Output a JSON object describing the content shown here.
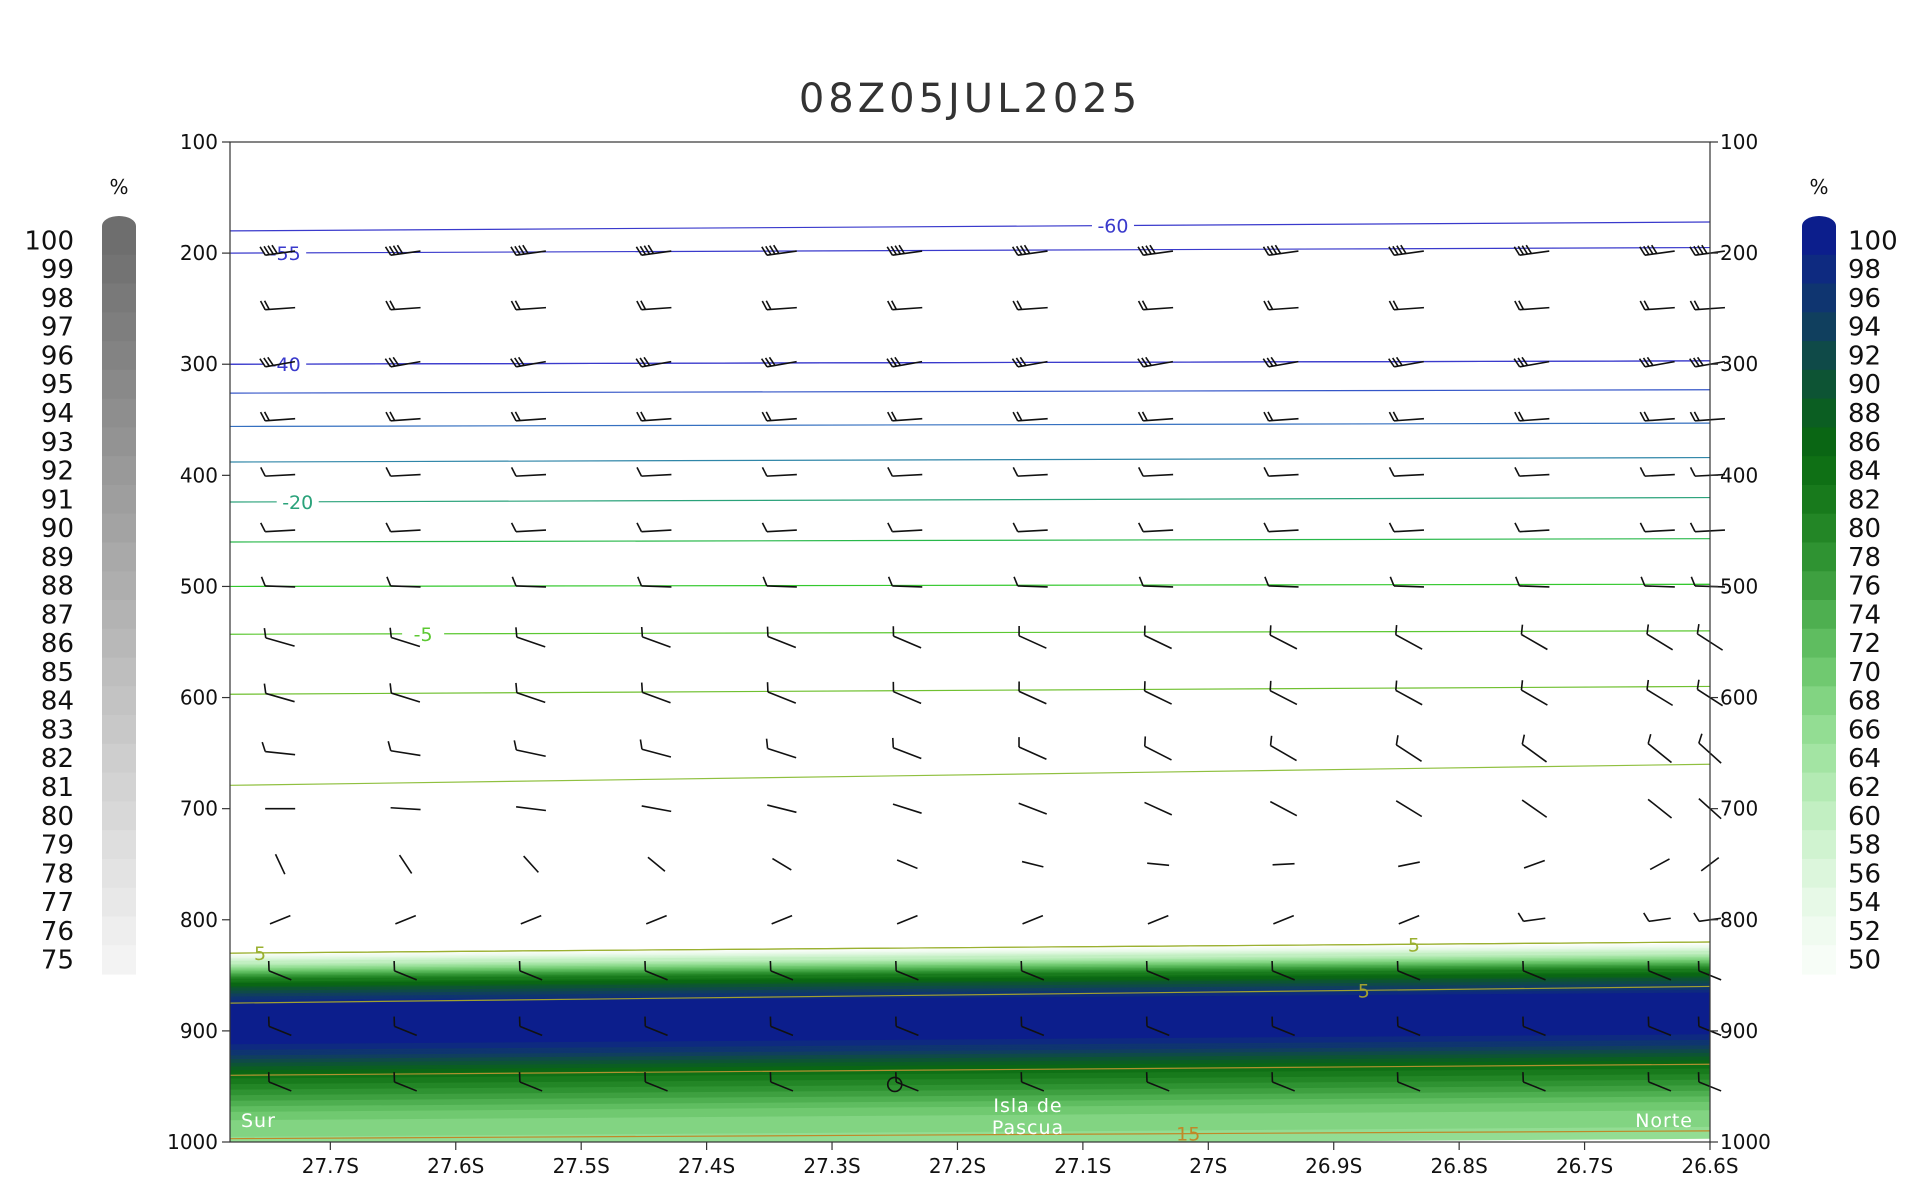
{
  "chart_data": {
    "type": "cross-section",
    "title": "08Z05JUL2025",
    "x_axis": {
      "labels": [
        "27.7S",
        "27.6S",
        "27.5S",
        "27.4S",
        "27.3S",
        "27.2S",
        "27.1S",
        "27S",
        "26.9S",
        "26.8S",
        "26.7S",
        "26.6S"
      ],
      "values": [
        -27.7,
        -27.6,
        -27.5,
        -27.4,
        -27.3,
        -27.2,
        -27.1,
        -27.0,
        -26.9,
        -26.8,
        -26.7,
        -26.6
      ],
      "range": [
        -27.78,
        -26.6
      ]
    },
    "y_axis": {
      "ticks": [
        100,
        200,
        300,
        400,
        500,
        600,
        700,
        800,
        900,
        1000
      ],
      "range": [
        100,
        1000
      ],
      "inverted": true
    },
    "annotations": {
      "left": "Sur",
      "center_line1": "Isla de",
      "center_line2": "Pascua",
      "right": "Norte"
    },
    "left_colorbar": {
      "unit": "%",
      "labels": [
        "100",
        "99",
        "98",
        "97",
        "96",
        "95",
        "94",
        "93",
        "92",
        "91",
        "90",
        "89",
        "88",
        "87",
        "86",
        "85",
        "84",
        "83",
        "82",
        "81",
        "80",
        "79",
        "78",
        "77",
        "76",
        "75"
      ],
      "color_top": "#6e6e6e",
      "color_bottom": "#f3f3f3"
    },
    "right_colorbar": {
      "unit": "%",
      "labels": [
        "100",
        "98",
        "96",
        "94",
        "92",
        "90",
        "88",
        "86",
        "84",
        "82",
        "80",
        "78",
        "76",
        "74",
        "72",
        "70",
        "68",
        "66",
        "64",
        "62",
        "60",
        "58",
        "56",
        "54",
        "52",
        "50"
      ],
      "colors": [
        "#0c1e8c",
        "#0e2a80",
        "#0f3570",
        "#103f5e",
        "#0f4a48",
        "#0d5434",
        "#0b5e22",
        "#0a6614",
        "#0f7015",
        "#187a1c",
        "#238626",
        "#2f9332",
        "#3ea040",
        "#4eaf50",
        "#5fbd60",
        "#70c970",
        "#82d482",
        "#93dd93",
        "#a3e4a3",
        "#b3eab3",
        "#c2efc2",
        "#d0f3d0",
        "#dcf6dc",
        "#e7f9e7",
        "#f0fbf0",
        "#f7fdf7"
      ]
    },
    "humidity_layer": {
      "description_values": {
        "pressure_top": 825,
        "pressure_core_top": 870,
        "pressure_core_bottom": 905,
        "pressure_bottom": 1000,
        "max_percent": 100
      }
    },
    "temperature_contours": [
      {
        "label": "-60",
        "p_left": 180,
        "p_right": 172,
        "color": "#3a3acc",
        "label_x": -27.08
      },
      {
        "label": "-55",
        "p_left": 200,
        "p_right": 195,
        "color": "#3a3acc",
        "label_x": -27.74
      },
      {
        "label": "",
        "p_left": 300,
        "p_right": 297,
        "color": "#3a3acc"
      },
      {
        "label": "-40",
        "p_left": 300,
        "p_right": 297,
        "color": "#3a3acc",
        "label_x": -27.74
      },
      {
        "label": "",
        "p_left": 326,
        "p_right": 323,
        "color": "#3556c8"
      },
      {
        "label": "",
        "p_left": 356,
        "p_right": 353,
        "color": "#3570c0"
      },
      {
        "label": "",
        "p_left": 388,
        "p_right": 384,
        "color": "#2f86a8"
      },
      {
        "label": "-20",
        "p_left": 424,
        "p_right": 420,
        "color": "#2aa27a",
        "label_x": -27.73
      },
      {
        "label": "",
        "p_left": 460,
        "p_right": 457,
        "color": "#28b84a"
      },
      {
        "label": "",
        "p_left": 500,
        "p_right": 498,
        "color": "#34c82e"
      },
      {
        "label": "-5",
        "p_left": 543,
        "p_right": 540,
        "color": "#5cc832",
        "label_x": -27.63
      },
      {
        "label": "",
        "p_left": 597,
        "p_right": 590,
        "color": "#70c030"
      },
      {
        "label": "",
        "p_left": 679,
        "p_right": 660,
        "color": "#90c040"
      },
      {
        "label": "5",
        "p_left": 830,
        "p_right": 820,
        "color": "#9ab030",
        "label_x": -27.76
      },
      {
        "label": "5",
        "p_left": 830,
        "p_right": 820,
        "color": "#9ab030",
        "label_x": -26.84
      },
      {
        "label": "5",
        "p_left": 875,
        "p_right": 860,
        "color": "#a0a030",
        "label_x": -26.88
      },
      {
        "label": "",
        "p_left": 940,
        "p_right": 930,
        "color": "#b09030"
      },
      {
        "label": "15",
        "p_left": 997,
        "p_right": 990,
        "color": "#c08828",
        "label_x": -27.02
      }
    ],
    "wind_barb_levels": [
      200,
      250,
      300,
      350,
      400,
      450,
      500,
      550,
      600,
      650,
      700,
      750,
      800,
      850,
      900,
      950
    ],
    "wind_barb_x": [
      -27.74,
      -27.64,
      -27.54,
      -27.44,
      -27.34,
      -27.24,
      -27.14,
      -27.04,
      -26.94,
      -26.84,
      -26.74,
      -26.64,
      -26.6
    ]
  }
}
